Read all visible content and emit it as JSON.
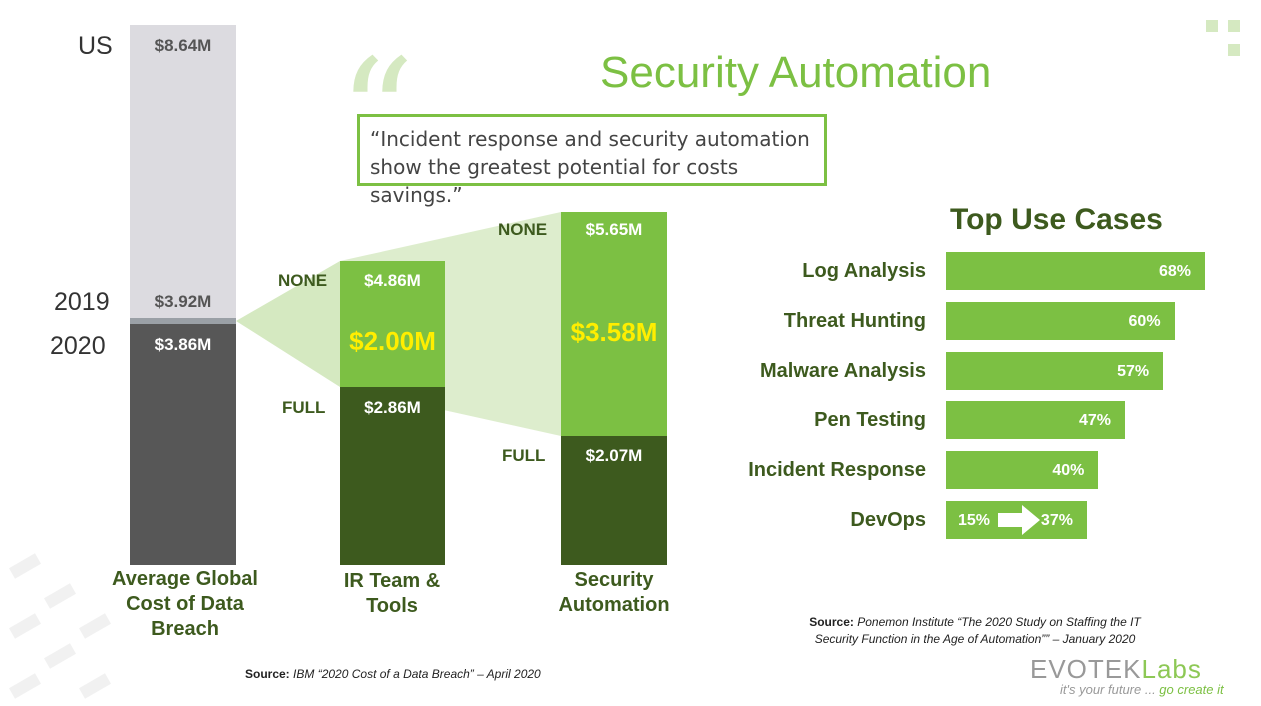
{
  "title": "Security Automation",
  "quote": "“Incident response and security automation show the greatest potential for costs savings.”",
  "chart_data": [
    {
      "type": "bar",
      "stacked": true,
      "categories": [
        "Average Global Cost of Data Breach",
        "IR Team & Tools",
        "Security Automation"
      ],
      "labels": {
        "us": "US",
        "y2019": "2019",
        "y2020": "2020",
        "none": "NONE",
        "full": "FULL"
      },
      "values": {
        "us": 8.64,
        "y2019": 3.92,
        "y2020": 3.86,
        "ir_none": 4.86,
        "ir_full": 2.86,
        "ir_savings": 2.0,
        "sa_none": 5.65,
        "sa_full": 2.07,
        "sa_savings": 3.58
      },
      "value_labels": {
        "us": "$8.64M",
        "y2019": "$3.92M",
        "y2020": "$3.86M",
        "ir_none": "$4.86M",
        "ir_full": "$2.86M",
        "ir_savings": "$2.00M",
        "sa_none": "$5.65M",
        "sa_full": "$2.07M",
        "sa_savings": "$3.58M"
      },
      "category_labels": {
        "global": [
          "Average Global",
          "Cost of Data",
          "Breach"
        ],
        "ir": [
          "IR Team &",
          "Tools"
        ],
        "sa": [
          "Security",
          "Automation"
        ]
      },
      "source_prefix": "Source:",
      "source": "IBM “2020 Cost of a Data Breach” – April 2020"
    },
    {
      "type": "bar",
      "orientation": "horizontal",
      "title": "Top Use Cases",
      "categories": [
        "Log Analysis",
        "Threat Hunting",
        "Malware Analysis",
        "Pen Testing",
        "Incident Response",
        "DevOps"
      ],
      "values": [
        68,
        60,
        57,
        47,
        40,
        37
      ],
      "value_labels": [
        "68%",
        "60%",
        "57%",
        "47%",
        "40%",
        "37%"
      ],
      "devops_from": 15,
      "devops_from_label": "15%",
      "source_prefix": "Source:",
      "source_line1": "Ponemon Institute “The 2020 Study on Staffing the IT",
      "source_line2": "Security Function in the Age of Automation”” – January 2020"
    }
  ],
  "logo": {
    "brand": "EVOTEK",
    "labs": "Labs",
    "tagline_a": "it's your future ... ",
    "tagline_b": "go create it"
  },
  "colors": {
    "light_gray": "#dcdbe0",
    "mid_gray": "#9aa0a6",
    "dark_gray": "#575757",
    "light_green": "#7cc043",
    "dark_green": "#3d5a1e",
    "fan": "#d5e9c1"
  }
}
